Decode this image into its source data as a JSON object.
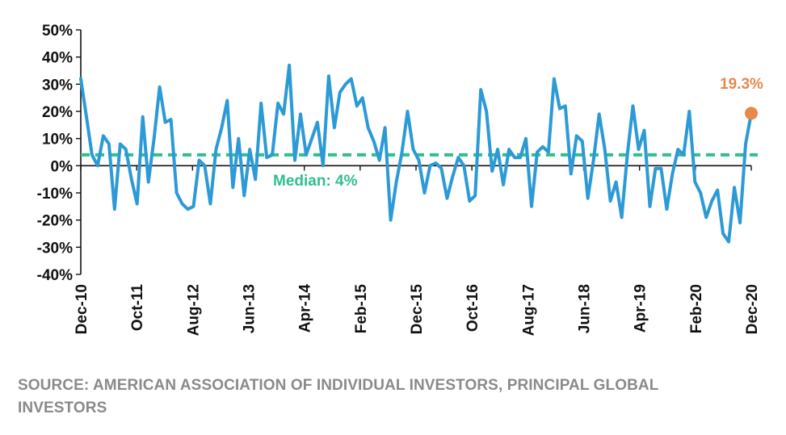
{
  "chart_data": {
    "type": "line",
    "title": "",
    "xlabel": "",
    "ylabel": "",
    "y_unit": "%",
    "ylim": [
      -40,
      50
    ],
    "y_ticks": [
      50,
      40,
      30,
      20,
      10,
      0,
      -10,
      -20,
      -30,
      -40
    ],
    "y_tick_labels": [
      "50%",
      "40%",
      "30%",
      "20%",
      "10%",
      "0%",
      "-10%",
      "-20%",
      "-30%",
      "-40%"
    ],
    "x_tick_labels": [
      "Dec-10",
      "Oct-11",
      "Aug-12",
      "Jun-13",
      "Apr-14",
      "Feb-15",
      "Dec-15",
      "Oct-16",
      "Aug-17",
      "Jun-18",
      "Apr-19",
      "Feb-20",
      "Dec-20"
    ],
    "x_range": [
      "Dec-10",
      "Dec-20"
    ],
    "grid": false,
    "series": [
      {
        "color": "#2c9ad6",
        "values": [
          32,
          18,
          4,
          0,
          11,
          8,
          -16,
          8,
          6,
          -5,
          -14,
          18,
          -6,
          10,
          29,
          16,
          17,
          -10,
          -14,
          -16,
          -15,
          2,
          0,
          -14,
          6,
          14,
          24,
          -8,
          10,
          -11,
          6,
          -5,
          23,
          3,
          4,
          23,
          19,
          37,
          2,
          19,
          4,
          10,
          16,
          0,
          33,
          14,
          27,
          30,
          32,
          22,
          25,
          14,
          9,
          2,
          14,
          -20,
          -6,
          5,
          20,
          6,
          2,
          -10,
          0,
          1,
          -1,
          -12,
          -4,
          3,
          0,
          -13,
          -11,
          28,
          20,
          -2,
          6,
          -7,
          6,
          3,
          3,
          10,
          -15,
          5,
          7,
          5,
          32,
          21,
          22,
          -3,
          11,
          9,
          -12,
          2,
          19,
          6,
          -13,
          -6,
          -19,
          4,
          22,
          6,
          13,
          -15,
          -1,
          -1,
          -16,
          -3,
          6,
          4,
          20,
          -6,
          -10,
          -19,
          -13,
          -9,
          -25,
          -28,
          -8,
          -21,
          8,
          19.3
        ]
      }
    ],
    "reference_line": {
      "value": 4,
      "label": "Median: 4%",
      "style": "dashed",
      "color": "#2fbf8f"
    },
    "end_point": {
      "value": 19.3,
      "label": "19.3%",
      "color": "#e8884a"
    }
  },
  "source_text": "SOURCE: AMERICAN ASSOCIATION OF INDIVIDUAL INVESTORS, PRINCIPAL GLOBAL INVESTORS"
}
